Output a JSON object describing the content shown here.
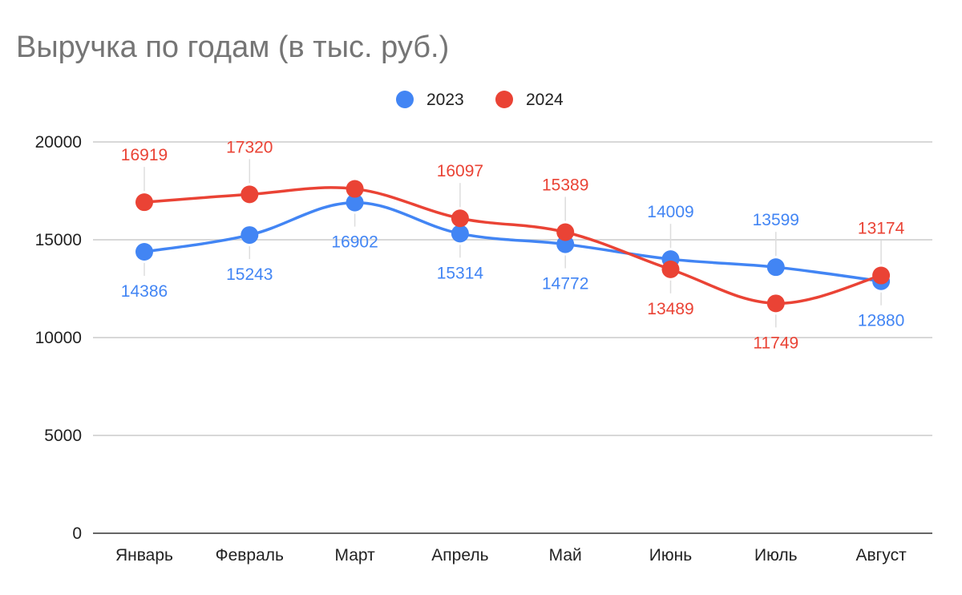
{
  "chart_data": {
    "type": "line",
    "title": "Выручка по годам (в тыс. руб.)",
    "categories": [
      "Январь",
      "Февраль",
      "Март",
      "Апрель",
      "Май",
      "Июнь",
      "Июль",
      "Август"
    ],
    "series": [
      {
        "name": "2023",
        "color": "#4285f4",
        "values": [
          14386,
          15243,
          16902,
          15314,
          14772,
          14009,
          13599,
          12880
        ]
      },
      {
        "name": "2024",
        "color": "#ea4335",
        "values": [
          16919,
          17320,
          17600,
          16097,
          15389,
          13489,
          11749,
          13174
        ]
      }
    ],
    "data_labels": {
      "2023": [
        "14386",
        "15243",
        "16902",
        "15314",
        "14772",
        "14009",
        "13599",
        "12880"
      ],
      "2024": [
        "16919",
        "17320",
        "",
        "16097",
        "15389",
        "13489",
        "11749",
        "13174"
      ]
    },
    "ylim": [
      0,
      20000
    ],
    "yticks": [
      0,
      5000,
      10000,
      15000,
      20000
    ],
    "ytick_labels": [
      "0",
      "5000",
      "10000",
      "15000",
      "20000"
    ],
    "grid": true,
    "legend": "top-center",
    "smooth": true
  }
}
